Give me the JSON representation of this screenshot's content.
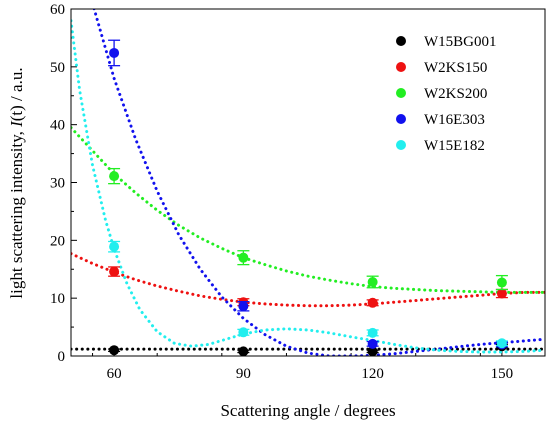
{
  "chart_data": {
    "type": "scatter",
    "xlabel": "Scattering angle / degrees",
    "ylabel_prefix": "light scattering intensity, ",
    "ylabel_italic": "I",
    "ylabel_suffix": "(t) / a.u.",
    "xlim": [
      50,
      160
    ],
    "ylim": [
      0,
      60
    ],
    "xticks": [
      60,
      90,
      120,
      150
    ],
    "yticks": [
      0,
      10,
      20,
      30,
      40,
      50,
      60
    ],
    "legend_position": "top-right",
    "series": [
      {
        "name": "W15BG001",
        "color": "#000000",
        "x": [
          60,
          90,
          120,
          150
        ],
        "y": [
          1.0,
          0.8,
          0.8,
          1.7
        ],
        "err": [
          0.2,
          0.2,
          0.2,
          0.3
        ],
        "fit_x": [
          50,
          160
        ],
        "fit_y": [
          1.2,
          1.2
        ]
      },
      {
        "name": "W2KS150",
        "color": "#ee1111",
        "x": [
          60,
          90,
          120,
          150
        ],
        "y": [
          14.6,
          9.3,
          9.2,
          10.8
        ],
        "err": [
          0.8,
          0.6,
          0.5,
          0.7
        ],
        "fit_x": [
          50,
          55,
          60,
          65,
          70,
          75,
          80,
          85,
          90,
          95,
          100,
          105,
          110,
          115,
          120,
          125,
          130,
          135,
          140,
          145,
          150,
          155,
          160
        ],
        "fit_y": [
          17.7,
          16.0,
          14.5,
          13.2,
          12.1,
          11.2,
          10.4,
          9.8,
          9.3,
          9.0,
          8.8,
          8.7,
          8.7,
          8.8,
          9.0,
          9.3,
          9.6,
          9.9,
          10.2,
          10.5,
          10.8,
          11.0,
          11.0
        ]
      },
      {
        "name": "W2KS200",
        "color": "#22ee22",
        "x": [
          60,
          90,
          120,
          150
        ],
        "y": [
          31.1,
          17.0,
          12.8,
          12.7
        ],
        "err": [
          1.3,
          1.2,
          1.0,
          1.2
        ],
        "fit_x": [
          50,
          55,
          60,
          65,
          70,
          75,
          80,
          85,
          90,
          95,
          100,
          105,
          110,
          115,
          120,
          125,
          130,
          135,
          140,
          145,
          150,
          155,
          160
        ],
        "fit_y": [
          39.5,
          35.5,
          31.5,
          28.2,
          25.2,
          22.6,
          20.4,
          18.6,
          17.0,
          15.8,
          14.7,
          13.8,
          13.1,
          12.5,
          12.0,
          11.7,
          11.5,
          11.3,
          11.2,
          11.1,
          11.0,
          11.0,
          11.0
        ]
      },
      {
        "name": "W16E303",
        "color": "#1111ee",
        "x": [
          60,
          90,
          120,
          150
        ],
        "y": [
          52.4,
          8.6,
          2.1,
          2.0
        ],
        "err": [
          2.2,
          0.8,
          0.4,
          0.4
        ],
        "fit_x": [
          55,
          60,
          65,
          70,
          75,
          80,
          85,
          90,
          95,
          100,
          105,
          110,
          115,
          120,
          125,
          130,
          135,
          140,
          145,
          150,
          155,
          160
        ],
        "fit_y": [
          61.0,
          48.0,
          37.5,
          28.5,
          21.0,
          15.0,
          10.2,
          6.5,
          3.7,
          1.7,
          0.5,
          0.0,
          0.0,
          0.1,
          0.4,
          0.8,
          1.2,
          1.6,
          2.0,
          2.3,
          2.6,
          2.9
        ]
      },
      {
        "name": "W15E182",
        "color": "#22eeee",
        "x": [
          60,
          90,
          120,
          150
        ],
        "y": [
          18.9,
          4.1,
          4.0,
          2.2
        ],
        "err": [
          0.9,
          0.5,
          0.5,
          0.4
        ],
        "fit_x": [
          50,
          52,
          55,
          58,
          60,
          63,
          66,
          70,
          74,
          78,
          82,
          86,
          90,
          95,
          100,
          105,
          110,
          115,
          120,
          125,
          130,
          135,
          140,
          145,
          150,
          155,
          160
        ],
        "fit_y": [
          58.0,
          46.0,
          33.0,
          23.5,
          18.5,
          12.5,
          8.0,
          4.2,
          2.2,
          1.7,
          2.0,
          2.9,
          3.8,
          4.5,
          4.7,
          4.5,
          4.0,
          3.3,
          2.7,
          2.0,
          1.4,
          1.0,
          0.8,
          0.7,
          0.7,
          0.8,
          1.0
        ]
      }
    ]
  }
}
